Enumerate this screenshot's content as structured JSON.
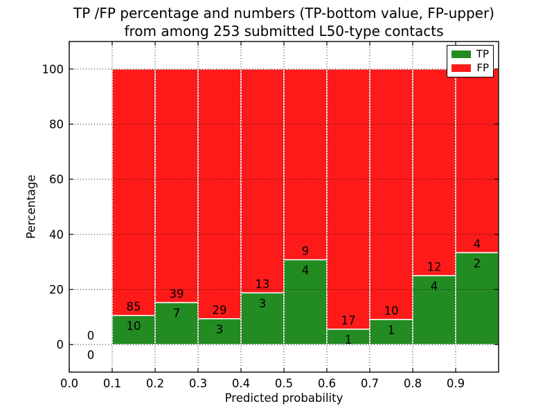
{
  "chart_data": {
    "type": "bar",
    "stacked": true,
    "title_lines": [
      "TP /FP percentage and numbers (TP-bottom value, FP-upper)",
      "from among 253 submitted L50-type contacts"
    ],
    "xlabel": "Predicted probability",
    "ylabel": "Percentage",
    "total_contacts": 253,
    "xlim": [
      0.0,
      1.0
    ],
    "ylim": [
      -10,
      110
    ],
    "xticks": [
      "0.0",
      "0.1",
      "0.2",
      "0.3",
      "0.4",
      "0.5",
      "0.6",
      "0.7",
      "0.8",
      "0.9"
    ],
    "yticks": [
      0,
      20,
      40,
      60,
      80,
      100
    ],
    "grid": true,
    "grid_style": "dotted",
    "legend": {
      "position": "upper right",
      "entries": [
        {
          "label": "TP",
          "color": "#228B22"
        },
        {
          "label": "FP",
          "color": "#FF1A1A"
        }
      ]
    },
    "colors": {
      "tp": "#228B22",
      "fp": "#FF1A1A",
      "bar_edge": "#ffffff",
      "grid": "#000000",
      "spine": "#000000",
      "text": "#000000",
      "background": "#ffffff"
    },
    "bins": [
      {
        "range": [
          0.0,
          0.1
        ],
        "tp_count": 0,
        "fp_count": 0,
        "tp_pct": 0,
        "fp_pct": 0
      },
      {
        "range": [
          0.1,
          0.2
        ],
        "tp_count": 10,
        "fp_count": 85,
        "tp_pct": 10.53,
        "fp_pct": 89.47
      },
      {
        "range": [
          0.2,
          0.3
        ],
        "tp_count": 7,
        "fp_count": 39,
        "tp_pct": 15.22,
        "fp_pct": 84.78
      },
      {
        "range": [
          0.3,
          0.4
        ],
        "tp_count": 3,
        "fp_count": 29,
        "tp_pct": 9.38,
        "fp_pct": 90.62
      },
      {
        "range": [
          0.4,
          0.5
        ],
        "tp_count": 3,
        "fp_count": 13,
        "tp_pct": 18.75,
        "fp_pct": 81.25
      },
      {
        "range": [
          0.5,
          0.6
        ],
        "tp_count": 4,
        "fp_count": 9,
        "tp_pct": 30.77,
        "fp_pct": 69.23
      },
      {
        "range": [
          0.6,
          0.7
        ],
        "tp_count": 1,
        "fp_count": 17,
        "tp_pct": 5.56,
        "fp_pct": 94.44
      },
      {
        "range": [
          0.7,
          0.8
        ],
        "tp_count": 1,
        "fp_count": 10,
        "tp_pct": 9.09,
        "fp_pct": 90.91
      },
      {
        "range": [
          0.8,
          0.9
        ],
        "tp_count": 4,
        "fp_count": 12,
        "tp_pct": 25.0,
        "fp_pct": 75.0
      },
      {
        "range": [
          0.9,
          1.0
        ],
        "tp_count": 2,
        "fp_count": 4,
        "tp_pct": 33.33,
        "fp_pct": 66.67
      }
    ]
  }
}
